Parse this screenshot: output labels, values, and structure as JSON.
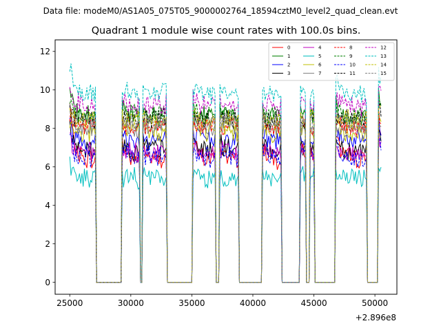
{
  "figure": {
    "suptitle": "Data file: modeM0/AS1A05_075T05_9000002764_18594cztM0_level2_quad_clean.evt",
    "title": "Quadrant 1 module wise count rates with 100.0s bins.",
    "x_offset_label": "+2.896e8"
  },
  "chart_data": {
    "type": "line",
    "title": "Quadrant 1 module wise count rates with 100.0s bins.",
    "xlabel": "",
    "ylabel": "",
    "xlim": [
      23800,
      51800
    ],
    "ylim": [
      -0.62,
      12.6
    ],
    "x_offset": 289600000,
    "bin_size_s": 100,
    "x_ticks": [
      25000,
      30000,
      35000,
      40000,
      45000,
      50000
    ],
    "x_tick_labels": [
      "25000",
      "30000",
      "35000",
      "40000",
      "45000",
      "50000"
    ],
    "y_ticks": [
      0,
      2,
      4,
      6,
      8,
      10,
      12
    ],
    "y_tick_labels": [
      "0",
      "2",
      "4",
      "6",
      "8",
      "10",
      "12"
    ],
    "legend_position": "top-right",
    "gti_segments": [
      {
        "start": 25000,
        "end": 27100,
        "start_peak": 1.0
      },
      {
        "start": 29300,
        "end": 30700,
        "start_peak": 0.3
      },
      {
        "start": 31000,
        "end": 32900,
        "start_peak": 0.3
      },
      {
        "start": 35100,
        "end": 36900,
        "start_peak": 0.4
      },
      {
        "start": 37300,
        "end": 38800,
        "start_peak": 0.3
      },
      {
        "start": 40800,
        "end": 42300,
        "start_peak": 0.3
      },
      {
        "start": 43900,
        "end": 44300,
        "start_peak": 0.2
      },
      {
        "start": 44700,
        "end": 45000,
        "start_peak": 0.2
      },
      {
        "start": 46800,
        "end": 49300,
        "start_peak": 0.5
      },
      {
        "start": 50300,
        "end": 50500,
        "start_peak": 1.0
      }
    ],
    "gap_level": 0,
    "series": [
      {
        "name": "0",
        "color": "#ff0000",
        "dash": "solid",
        "mean": 6.4,
        "start": 9.3
      },
      {
        "name": "1",
        "color": "#008000",
        "dash": "solid",
        "mean": 8.6,
        "start": 9.9
      },
      {
        "name": "2",
        "color": "#0000ff",
        "dash": "solid",
        "mean": 7.4,
        "start": 8.2
      },
      {
        "name": "3",
        "color": "#000000",
        "dash": "solid",
        "mean": 6.9,
        "start": 8.1
      },
      {
        "name": "4",
        "color": "#bf00bf",
        "dash": "solid",
        "mean": 6.7,
        "start": 7.6
      },
      {
        "name": "5",
        "color": "#00bfbf",
        "dash": "solid",
        "mean": 5.4,
        "start": 6.1
      },
      {
        "name": "6",
        "color": "#bfbf00",
        "dash": "solid",
        "mean": 7.8,
        "start": 8.6
      },
      {
        "name": "7",
        "color": "#808080",
        "dash": "solid",
        "mean": 8.0,
        "start": 8.5
      },
      {
        "name": "8",
        "color": "#ff0000",
        "dash": "dashed",
        "mean": 8.1,
        "start": 8.8
      },
      {
        "name": "9",
        "color": "#008000",
        "dash": "dashed",
        "mean": 8.7,
        "start": 9.5
      },
      {
        "name": "10",
        "color": "#0000ff",
        "dash": "dashed",
        "mean": 6.5,
        "start": 7.7
      },
      {
        "name": "11",
        "color": "#000000",
        "dash": "dashed",
        "mean": 8.5,
        "start": 9.0
      },
      {
        "name": "12",
        "color": "#bf00bf",
        "dash": "dashed",
        "mean": 9.2,
        "start": 10.4
      },
      {
        "name": "13",
        "color": "#00bfbf",
        "dash": "dashed",
        "mean": 9.8,
        "start": 11.3
      },
      {
        "name": "14",
        "color": "#bfbf00",
        "dash": "dashed",
        "mean": 8.4,
        "start": 9.2
      },
      {
        "name": "15",
        "color": "#808080",
        "dash": "dashed",
        "mean": 8.3,
        "start": 8.9
      }
    ]
  }
}
